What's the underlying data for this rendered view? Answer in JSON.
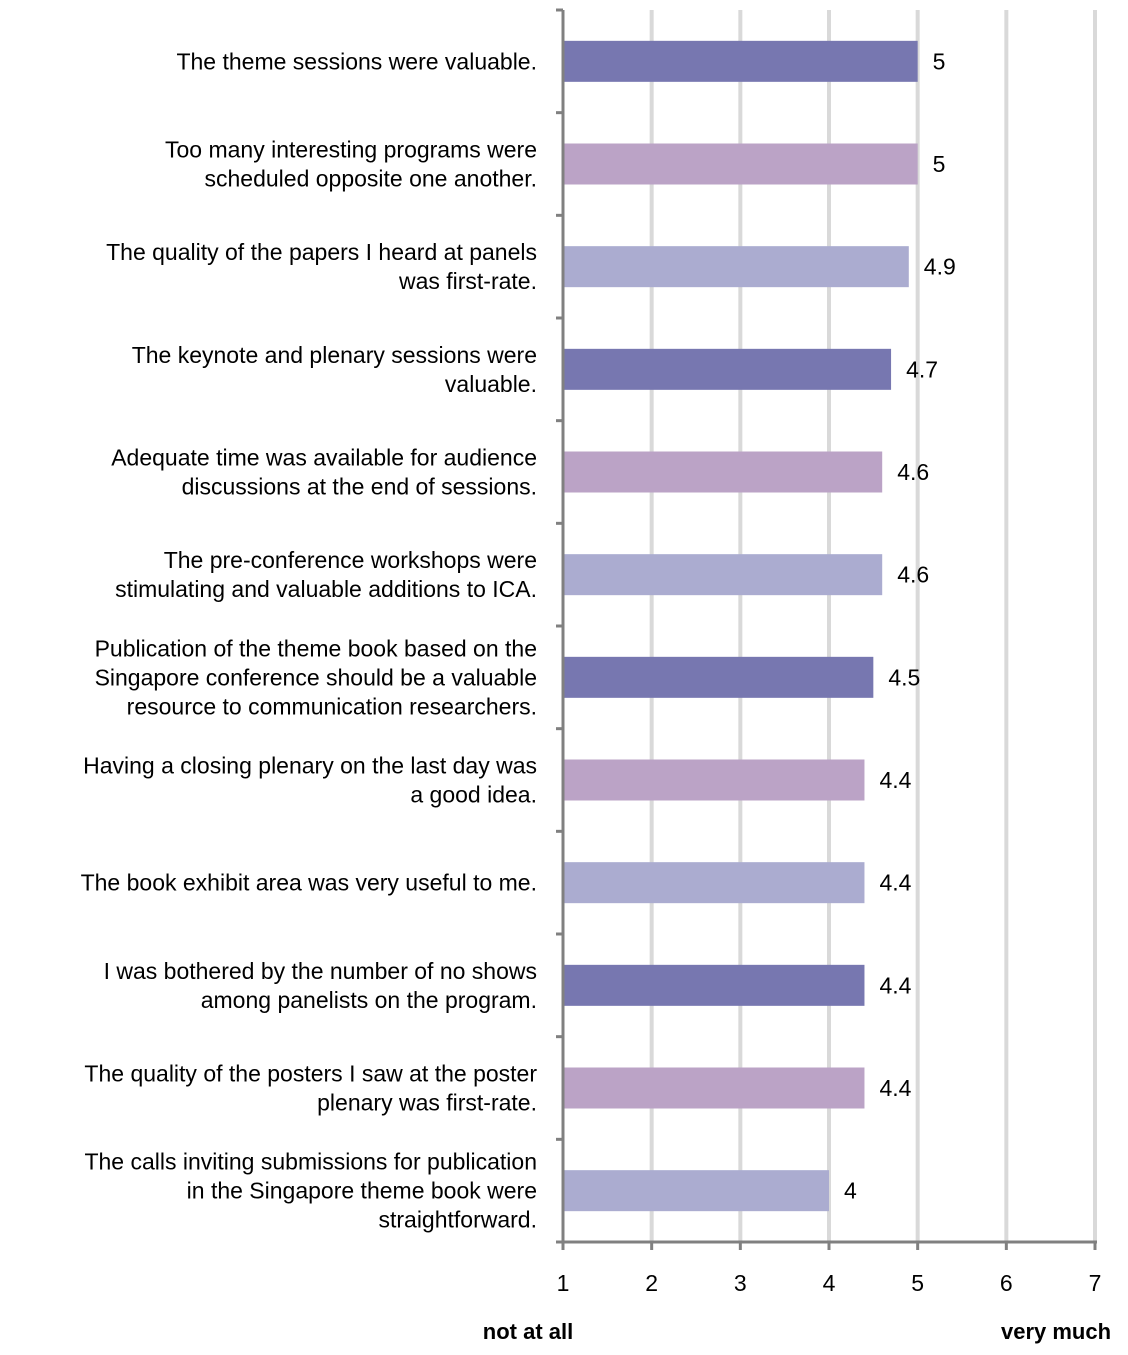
{
  "chart_data": {
    "type": "bar",
    "orientation": "horizontal",
    "categories": [
      [
        "The theme sessions were valuable."
      ],
      [
        "Too many interesting programs were",
        "scheduled opposite one another."
      ],
      [
        "The quality of the papers I heard at panels",
        "was first-rate."
      ],
      [
        "The keynote and plenary sessions were",
        "valuable."
      ],
      [
        "Adequate time was available for audience",
        "discussions at the end of sessions."
      ],
      [
        "The pre-conference workshops were",
        "stimulating and valuable additions to ICA."
      ],
      [
        "Publication of the theme book based on the",
        "Singapore conference should be a valuable",
        "resource to communication researchers."
      ],
      [
        "Having a closing plenary on the last day was",
        "a good idea."
      ],
      [
        "The book exhibit area was very useful to me."
      ],
      [
        "I was bothered by the number of no shows",
        "among panelists on the program."
      ],
      [
        "The quality of the posters I saw at the poster",
        "plenary was first-rate."
      ],
      [
        "The calls inviting submissions for publication",
        "in the Singapore theme book were",
        "straightforward."
      ]
    ],
    "values": [
      5,
      5,
      4.9,
      4.7,
      4.6,
      4.6,
      4.5,
      4.4,
      4.4,
      4.4,
      4.4,
      4
    ],
    "value_labels": [
      "5",
      "5",
      "4.9",
      "4.7",
      "4.6",
      "4.6",
      "4.5",
      "4.4",
      "4.4",
      "4.4",
      "4.4",
      "4"
    ],
    "bar_colors": [
      "#7777b0",
      "#bba3c6",
      "#abacd0",
      "#7777b0",
      "#bba3c6",
      "#abacd0",
      "#7777b0",
      "#bba3c6",
      "#abacd0",
      "#7777b0",
      "#bba3c6",
      "#abacd0"
    ],
    "xlim": [
      1,
      7
    ],
    "xticks": [
      "1",
      "2",
      "3",
      "4",
      "5",
      "6",
      "7"
    ],
    "x_end_labels": {
      "low": "not at all",
      "high": "very much"
    },
    "gridlines": true,
    "grid_color": "#d9d9d9",
    "axis_color": "#808080",
    "legend": "none"
  }
}
